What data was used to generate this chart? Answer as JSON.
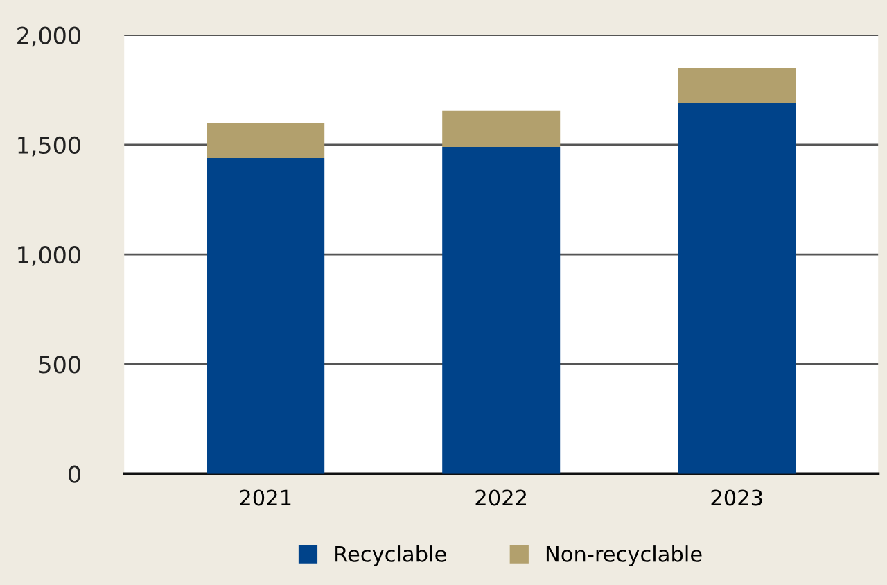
{
  "chart_data": {
    "type": "bar",
    "stacked": true,
    "categories": [
      "2021",
      "2022",
      "2023"
    ],
    "series": [
      {
        "name": "Recyclable",
        "color": "#00438a",
        "values": [
          1440,
          1490,
          1690
        ]
      },
      {
        "name": "Non-recyclable",
        "color": "#b2a06d",
        "values": [
          160,
          165,
          160
        ]
      }
    ],
    "ylim": [
      0,
      2000
    ],
    "yticks": [
      0,
      {
        "value": 500,
        "label": "500"
      },
      {
        "value": 1000,
        "label": "1,000"
      },
      {
        "value": 1500,
        "label": "1,500"
      },
      {
        "value": 2000,
        "label": "2,000"
      }
    ],
    "grid": "y",
    "legend": "bottom"
  }
}
